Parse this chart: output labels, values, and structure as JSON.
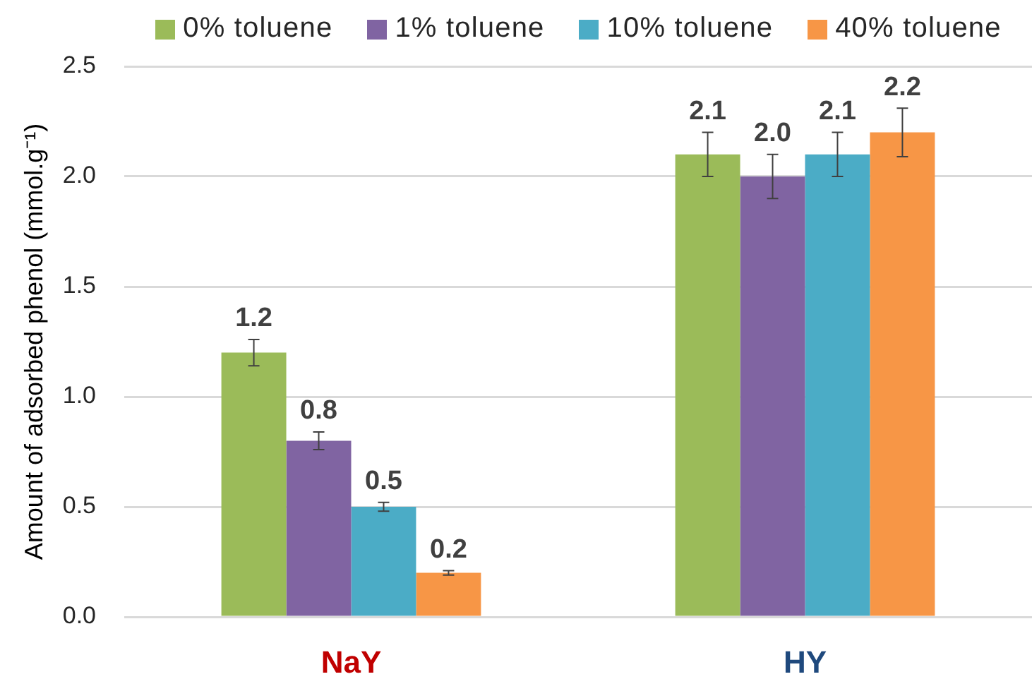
{
  "chart_data": {
    "type": "bar",
    "ylabel": "Amount of adsorbed phenol (mmol.g⁻¹)",
    "categories": [
      "NaY",
      "HY"
    ],
    "series": [
      {
        "name": "0% toluene",
        "color": "#9bbb59",
        "values": [
          1.2,
          2.1
        ],
        "errors": [
          0.06,
          0.1
        ],
        "value_labels": [
          "1.2",
          "2.1"
        ]
      },
      {
        "name": "1% toluene",
        "color": "#8064a2",
        "values": [
          0.8,
          2.0
        ],
        "errors": [
          0.04,
          0.1
        ],
        "value_labels": [
          "0.8",
          "2.0"
        ]
      },
      {
        "name": "10% toluene",
        "color": "#4bacc6",
        "values": [
          0.5,
          2.1
        ],
        "errors": [
          0.02,
          0.1
        ],
        "value_labels": [
          "0.5",
          "2.1"
        ]
      },
      {
        "name": "40% toluene",
        "color": "#f79646",
        "values": [
          0.2,
          2.2
        ],
        "errors": [
          0.01,
          0.11
        ],
        "value_labels": [
          "0.2",
          "2.2"
        ]
      }
    ],
    "ylim": [
      0,
      2.5
    ],
    "yticks": [
      {
        "value": 0,
        "label": "0.0"
      },
      0.5,
      {
        "value": 1,
        "label": "1.0"
      },
      1.5,
      {
        "value": 2,
        "label": "2.0"
      },
      2.5
    ],
    "grid": "y",
    "legend": "top"
  }
}
